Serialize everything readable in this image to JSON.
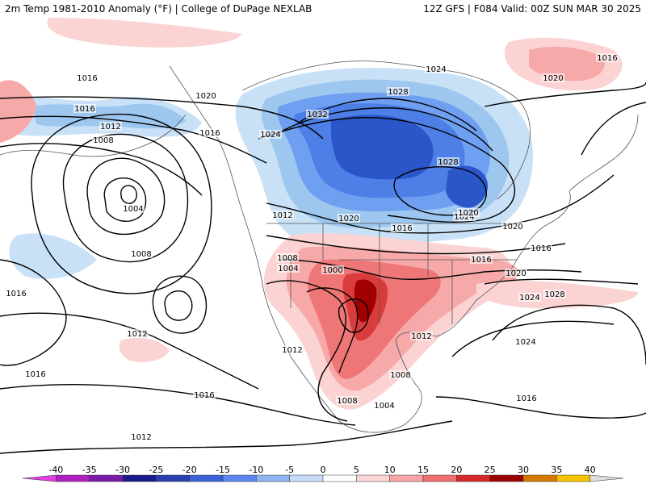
{
  "header": {
    "title": "2m Temp 1981-2010 Anomaly (°F) | College of DuPage NEXLAB",
    "run_info": "12Z GFS | F084 Valid: 00Z SUN MAR 30 2025"
  },
  "map": {
    "background_color": "#ffffff",
    "coastline_color": "#555555",
    "isobar_color": "#000000",
    "cold_colors": [
      "#c8e1f7",
      "#9ec7f0",
      "#6f9ff0",
      "#4d7fe6",
      "#2a56c9"
    ],
    "warm_colors": [
      "#fbd3d3",
      "#f7a9a9",
      "#ef7676",
      "#d93c3c",
      "#a00000"
    ],
    "isobar_labels": [
      {
        "value": "1016"
      },
      {
        "value": "1016"
      },
      {
        "value": "1012"
      },
      {
        "value": "1008"
      },
      {
        "value": "1004"
      },
      {
        "value": "1008"
      },
      {
        "value": "1020"
      },
      {
        "value": "1016"
      },
      {
        "value": "1024"
      },
      {
        "value": "1032"
      },
      {
        "value": "1028"
      },
      {
        "value": "1024"
      },
      {
        "value": "1028"
      },
      {
        "value": "1020"
      },
      {
        "value": "1016"
      },
      {
        "value": "1024"
      },
      {
        "value": "1020"
      },
      {
        "value": "1016"
      },
      {
        "value": "1012"
      },
      {
        "value": "1020"
      },
      {
        "value": "1008"
      },
      {
        "value": "1004"
      },
      {
        "value": "1000"
      },
      {
        "value": "1016"
      },
      {
        "value": "1020"
      },
      {
        "value": "1016"
      },
      {
        "value": "1024"
      },
      {
        "value": "1020"
      },
      {
        "value": "1016"
      },
      {
        "value": "1012"
      },
      {
        "value": "1012"
      },
      {
        "value": "1012"
      },
      {
        "value": "1008"
      },
      {
        "value": "1028"
      },
      {
        "value": "1024"
      },
      {
        "value": "1016"
      },
      {
        "value": "1008"
      },
      {
        "value": "1004"
      },
      {
        "value": "1016"
      },
      {
        "value": "1016"
      },
      {
        "value": "1012"
      }
    ]
  },
  "colorbar": {
    "ticks": [
      "-40",
      "-35",
      "-30",
      "-25",
      "-20",
      "-15",
      "-10",
      "-5",
      "0",
      "5",
      "10",
      "15",
      "20",
      "25",
      "30",
      "35",
      "40"
    ],
    "colors": [
      "#e040e0",
      "#b020c0",
      "#7a1aa8",
      "#1a1a8c",
      "#2a3fb0",
      "#3c62d8",
      "#5a86ee",
      "#8fb4f3",
      "#c5dcf8",
      "#ffffff",
      "#fcd6d6",
      "#f7a5a5",
      "#ef6f6f",
      "#d62828",
      "#9c0000",
      "#d47a00",
      "#f4c400",
      "#dddddd"
    ]
  }
}
